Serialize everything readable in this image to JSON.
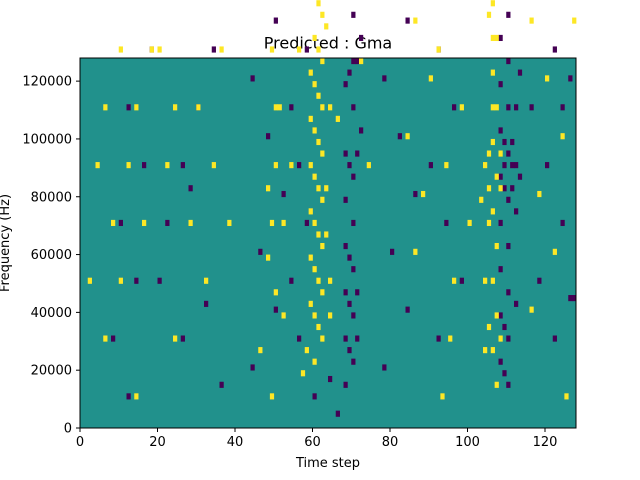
{
  "chart_data": {
    "type": "heatmap",
    "title": "Predicted : Gma",
    "xlabel": "Time step",
    "ylabel": "Frequency (Hz)",
    "xlim": [
      0,
      128
    ],
    "ylim": [
      0,
      128000
    ],
    "x_ticks": [
      "0",
      "20",
      "40",
      "60",
      "80",
      "100",
      "120"
    ],
    "x_tick_values": [
      0,
      20,
      40,
      60,
      80,
      100,
      120
    ],
    "y_ticks": [
      "0",
      "20000",
      "40000",
      "60000",
      "80000",
      "100000",
      "120000"
    ],
    "y_tick_values": [
      0,
      20000,
      40000,
      60000,
      80000,
      100000,
      120000
    ],
    "grid": false,
    "n_time_steps": 128,
    "n_freq_bins": 64,
    "colormap": {
      "low": "#440154",
      "mid": "#21918c",
      "high": "#fde725"
    },
    "background_value": "mid",
    "low_cells": [
      [
        40,
        123
      ],
      [
        64,
        115
      ],
      [
        66,
        107
      ],
      [
        68,
        103
      ],
      [
        68,
        99
      ],
      [
        70,
        95
      ],
      [
        72,
        91
      ],
      [
        74,
        87
      ],
      [
        70,
        83
      ],
      [
        72,
        79
      ],
      [
        68,
        75
      ],
      [
        70,
        71
      ],
      [
        72,
        67
      ],
      [
        70,
        63
      ],
      [
        68,
        59
      ],
      [
        70,
        55
      ],
      [
        72,
        51
      ],
      [
        68,
        47
      ],
      [
        70,
        43
      ],
      [
        68,
        39
      ],
      [
        70,
        35
      ],
      [
        68,
        31
      ],
      [
        70,
        27
      ],
      [
        68,
        23
      ],
      [
        70,
        19
      ],
      [
        68,
        15
      ],
      [
        70,
        11
      ],
      [
        68,
        7
      ],
      [
        69,
        29
      ],
      [
        69,
        45
      ],
      [
        71,
        47
      ],
      [
        69,
        61
      ],
      [
        71,
        63
      ],
      [
        69,
        77
      ],
      [
        71,
        79
      ],
      [
        69,
        13
      ],
      [
        71,
        15
      ],
      [
        69,
        21
      ],
      [
        71,
        23
      ],
      [
        108,
        75
      ],
      [
        110,
        71
      ],
      [
        108,
        67
      ],
      [
        110,
        63
      ],
      [
        108,
        59
      ],
      [
        110,
        55
      ],
      [
        108,
        51
      ],
      [
        110,
        47
      ],
      [
        112,
        45
      ],
      [
        108,
        43
      ],
      [
        110,
        39
      ],
      [
        112,
        37
      ],
      [
        108,
        35
      ],
      [
        110,
        31
      ],
      [
        108,
        27
      ],
      [
        110,
        23
      ],
      [
        112,
        21
      ],
      [
        108,
        19
      ],
      [
        110,
        15
      ],
      [
        108,
        11
      ],
      [
        110,
        7
      ],
      [
        109,
        49
      ],
      [
        111,
        49
      ],
      [
        109,
        45
      ],
      [
        111,
        45
      ],
      [
        109,
        41
      ],
      [
        111,
        41
      ],
      [
        113,
        43
      ],
      [
        109,
        17
      ],
      [
        109,
        9
      ],
      [
        18,
        105
      ],
      [
        22,
        95
      ],
      [
        28,
        85
      ],
      [
        24,
        75
      ],
      [
        34,
        65
      ],
      [
        30,
        55
      ],
      [
        26,
        45
      ],
      [
        22,
        35
      ],
      [
        20,
        25
      ],
      [
        26,
        15
      ],
      [
        14,
        115
      ],
      [
        12,
        105
      ],
      [
        16,
        95
      ],
      [
        10,
        85
      ],
      [
        14,
        75
      ],
      [
        18,
        65
      ],
      [
        12,
        55
      ],
      [
        16,
        45
      ],
      [
        10,
        35
      ],
      [
        14,
        25
      ],
      [
        8,
        15
      ],
      [
        12,
        5
      ],
      [
        44,
        110
      ],
      [
        48,
        100
      ],
      [
        52,
        90
      ],
      [
        46,
        80
      ],
      [
        50,
        70
      ],
      [
        44,
        60
      ],
      [
        48,
        50
      ],
      [
        52,
        40
      ],
      [
        46,
        30
      ],
      [
        50,
        20
      ],
      [
        44,
        10
      ],
      [
        56,
        110
      ],
      [
        58,
        95
      ],
      [
        54,
        85
      ],
      [
        56,
        75
      ],
      [
        58,
        65
      ],
      [
        54,
        55
      ],
      [
        56,
        45
      ],
      [
        58,
        35
      ],
      [
        54,
        25
      ],
      [
        56,
        15
      ],
      [
        78,
        110
      ],
      [
        82,
        100
      ],
      [
        86,
        90
      ],
      [
        80,
        80
      ],
      [
        84,
        70
      ],
      [
        78,
        60
      ],
      [
        82,
        50
      ],
      [
        86,
        40
      ],
      [
        80,
        30
      ],
      [
        84,
        20
      ],
      [
        78,
        10
      ],
      [
        92,
        115
      ],
      [
        96,
        105
      ],
      [
        90,
        95
      ],
      [
        94,
        85
      ],
      [
        98,
        75
      ],
      [
        92,
        65
      ],
      [
        96,
        55
      ],
      [
        90,
        45
      ],
      [
        94,
        35
      ],
      [
        98,
        25
      ],
      [
        92,
        15
      ],
      [
        102,
        110
      ],
      [
        104,
        98
      ],
      [
        100,
        88
      ],
      [
        116,
        105
      ],
      [
        120,
        95
      ],
      [
        114,
        85
      ],
      [
        118,
        75
      ],
      [
        122,
        65
      ],
      [
        116,
        55
      ],
      [
        120,
        45
      ],
      [
        124,
        35
      ],
      [
        118,
        25
      ],
      [
        122,
        15
      ],
      [
        124,
        55
      ],
      [
        126,
        22
      ],
      [
        127,
        22
      ],
      [
        126,
        60
      ],
      [
        60,
        5
      ],
      [
        64,
        8
      ],
      [
        66,
        2
      ],
      [
        112,
        55
      ],
      [
        113,
        61
      ],
      [
        36,
        7
      ],
      [
        32,
        21
      ],
      [
        28,
        41
      ]
    ],
    "high_cells": [
      [
        62,
        87
      ],
      [
        60,
        83
      ],
      [
        62,
        79
      ],
      [
        60,
        75
      ],
      [
        62,
        71
      ],
      [
        60,
        67
      ],
      [
        62,
        63
      ],
      [
        60,
        59
      ],
      [
        62,
        55
      ],
      [
        60,
        51
      ],
      [
        62,
        47
      ],
      [
        60,
        43
      ],
      [
        62,
        39
      ],
      [
        60,
        35
      ],
      [
        62,
        31
      ],
      [
        60,
        27
      ],
      [
        62,
        23
      ],
      [
        60,
        19
      ],
      [
        62,
        15
      ],
      [
        60,
        11
      ],
      [
        61,
        87
      ],
      [
        61,
        81
      ],
      [
        61,
        73
      ],
      [
        61,
        65
      ],
      [
        61,
        57
      ],
      [
        61,
        49
      ],
      [
        61,
        41
      ],
      [
        61,
        33
      ],
      [
        61,
        25
      ],
      [
        61,
        17
      ],
      [
        59,
        61
      ],
      [
        59,
        53
      ],
      [
        59,
        45
      ],
      [
        59,
        37
      ],
      [
        59,
        29
      ],
      [
        59,
        21
      ],
      [
        63,
        69
      ],
      [
        63,
        77
      ],
      [
        63,
        33
      ],
      [
        63,
        41
      ],
      [
        64,
        25
      ],
      [
        64,
        19
      ],
      [
        58,
        13
      ],
      [
        57,
        9
      ],
      [
        63,
        103
      ],
      [
        63,
        98
      ],
      [
        62,
        104
      ],
      [
        60,
        110
      ],
      [
        64,
        113
      ],
      [
        65,
        93
      ],
      [
        106,
        85
      ],
      [
        107,
        79
      ],
      [
        106,
        73
      ],
      [
        107,
        67
      ],
      [
        106,
        61
      ],
      [
        107,
        55
      ],
      [
        106,
        49
      ],
      [
        107,
        43
      ],
      [
        106,
        37
      ],
      [
        107,
        31
      ],
      [
        106,
        25
      ],
      [
        107,
        19
      ],
      [
        106,
        13
      ],
      [
        107,
        7
      ],
      [
        105,
        47
      ],
      [
        105,
        41
      ],
      [
        104,
        45
      ],
      [
        105,
        35
      ],
      [
        108,
        47
      ],
      [
        108,
        41
      ],
      [
        105,
        17
      ],
      [
        104,
        13
      ],
      [
        108,
        15
      ],
      [
        106,
        67
      ],
      [
        106,
        55
      ],
      [
        104,
        25
      ],
      [
        103,
        39
      ],
      [
        107,
        89
      ],
      [
        105,
        71
      ],
      [
        106,
        97
      ],
      [
        48,
        29
      ],
      [
        49,
        35
      ],
      [
        48,
        41
      ],
      [
        50,
        45
      ],
      [
        51,
        55
      ],
      [
        49,
        65
      ],
      [
        50,
        23
      ],
      [
        52,
        19
      ],
      [
        46,
        13
      ],
      [
        49,
        5
      ],
      [
        6,
        105
      ],
      [
        4,
        95
      ],
      [
        8,
        85
      ],
      [
        2,
        75
      ],
      [
        10,
        65
      ],
      [
        6,
        55
      ],
      [
        4,
        45
      ],
      [
        8,
        35
      ],
      [
        2,
        25
      ],
      [
        6,
        15
      ],
      [
        12,
        115
      ],
      [
        14,
        95
      ],
      [
        16,
        85
      ],
      [
        10,
        75
      ],
      [
        18,
        65
      ],
      [
        14,
        55
      ],
      [
        12,
        45
      ],
      [
        16,
        35
      ],
      [
        10,
        25
      ],
      [
        14,
        5
      ],
      [
        26,
        125
      ],
      [
        20,
        105
      ],
      [
        24,
        95
      ],
      [
        22,
        85
      ],
      [
        26,
        75
      ],
      [
        20,
        65
      ],
      [
        24,
        55
      ],
      [
        22,
        45
      ],
      [
        28,
        35
      ],
      [
        24,
        15
      ],
      [
        34,
        120
      ],
      [
        36,
        105
      ],
      [
        30,
        95
      ],
      [
        38,
        85
      ],
      [
        32,
        75
      ],
      [
        36,
        65
      ],
      [
        30,
        55
      ],
      [
        34,
        45
      ],
      [
        38,
        35
      ],
      [
        32,
        25
      ],
      [
        52,
        125
      ],
      [
        54,
        115
      ],
      [
        56,
        105
      ],
      [
        50,
        95
      ],
      [
        54,
        85
      ],
      [
        52,
        75
      ],
      [
        56,
        65
      ],
      [
        50,
        55
      ],
      [
        54,
        45
      ],
      [
        52,
        35
      ],
      [
        86,
        120
      ],
      [
        88,
        110
      ],
      [
        90,
        100
      ],
      [
        84,
        90
      ],
      [
        88,
        80
      ],
      [
        86,
        70
      ],
      [
        90,
        60
      ],
      [
        84,
        50
      ],
      [
        88,
        40
      ],
      [
        86,
        30
      ],
      [
        96,
        115
      ],
      [
        98,
        105
      ],
      [
        94,
        95
      ],
      [
        100,
        85
      ],
      [
        96,
        75
      ],
      [
        92,
        65
      ],
      [
        98,
        55
      ],
      [
        94,
        45
      ],
      [
        100,
        35
      ],
      [
        96,
        25
      ],
      [
        116,
        110
      ],
      [
        120,
        100
      ],
      [
        118,
        90
      ],
      [
        122,
        80
      ],
      [
        116,
        70
      ],
      [
        120,
        60
      ],
      [
        124,
        50
      ],
      [
        118,
        40
      ],
      [
        122,
        30
      ],
      [
        116,
        20
      ],
      [
        124,
        125
      ],
      [
        126,
        90
      ],
      [
        127,
        70
      ],
      [
        125,
        5
      ],
      [
        95,
        15
      ],
      [
        93,
        5
      ],
      [
        72,
        63
      ],
      [
        74,
        45
      ],
      [
        66,
        53
      ],
      [
        64,
        55
      ]
    ]
  }
}
